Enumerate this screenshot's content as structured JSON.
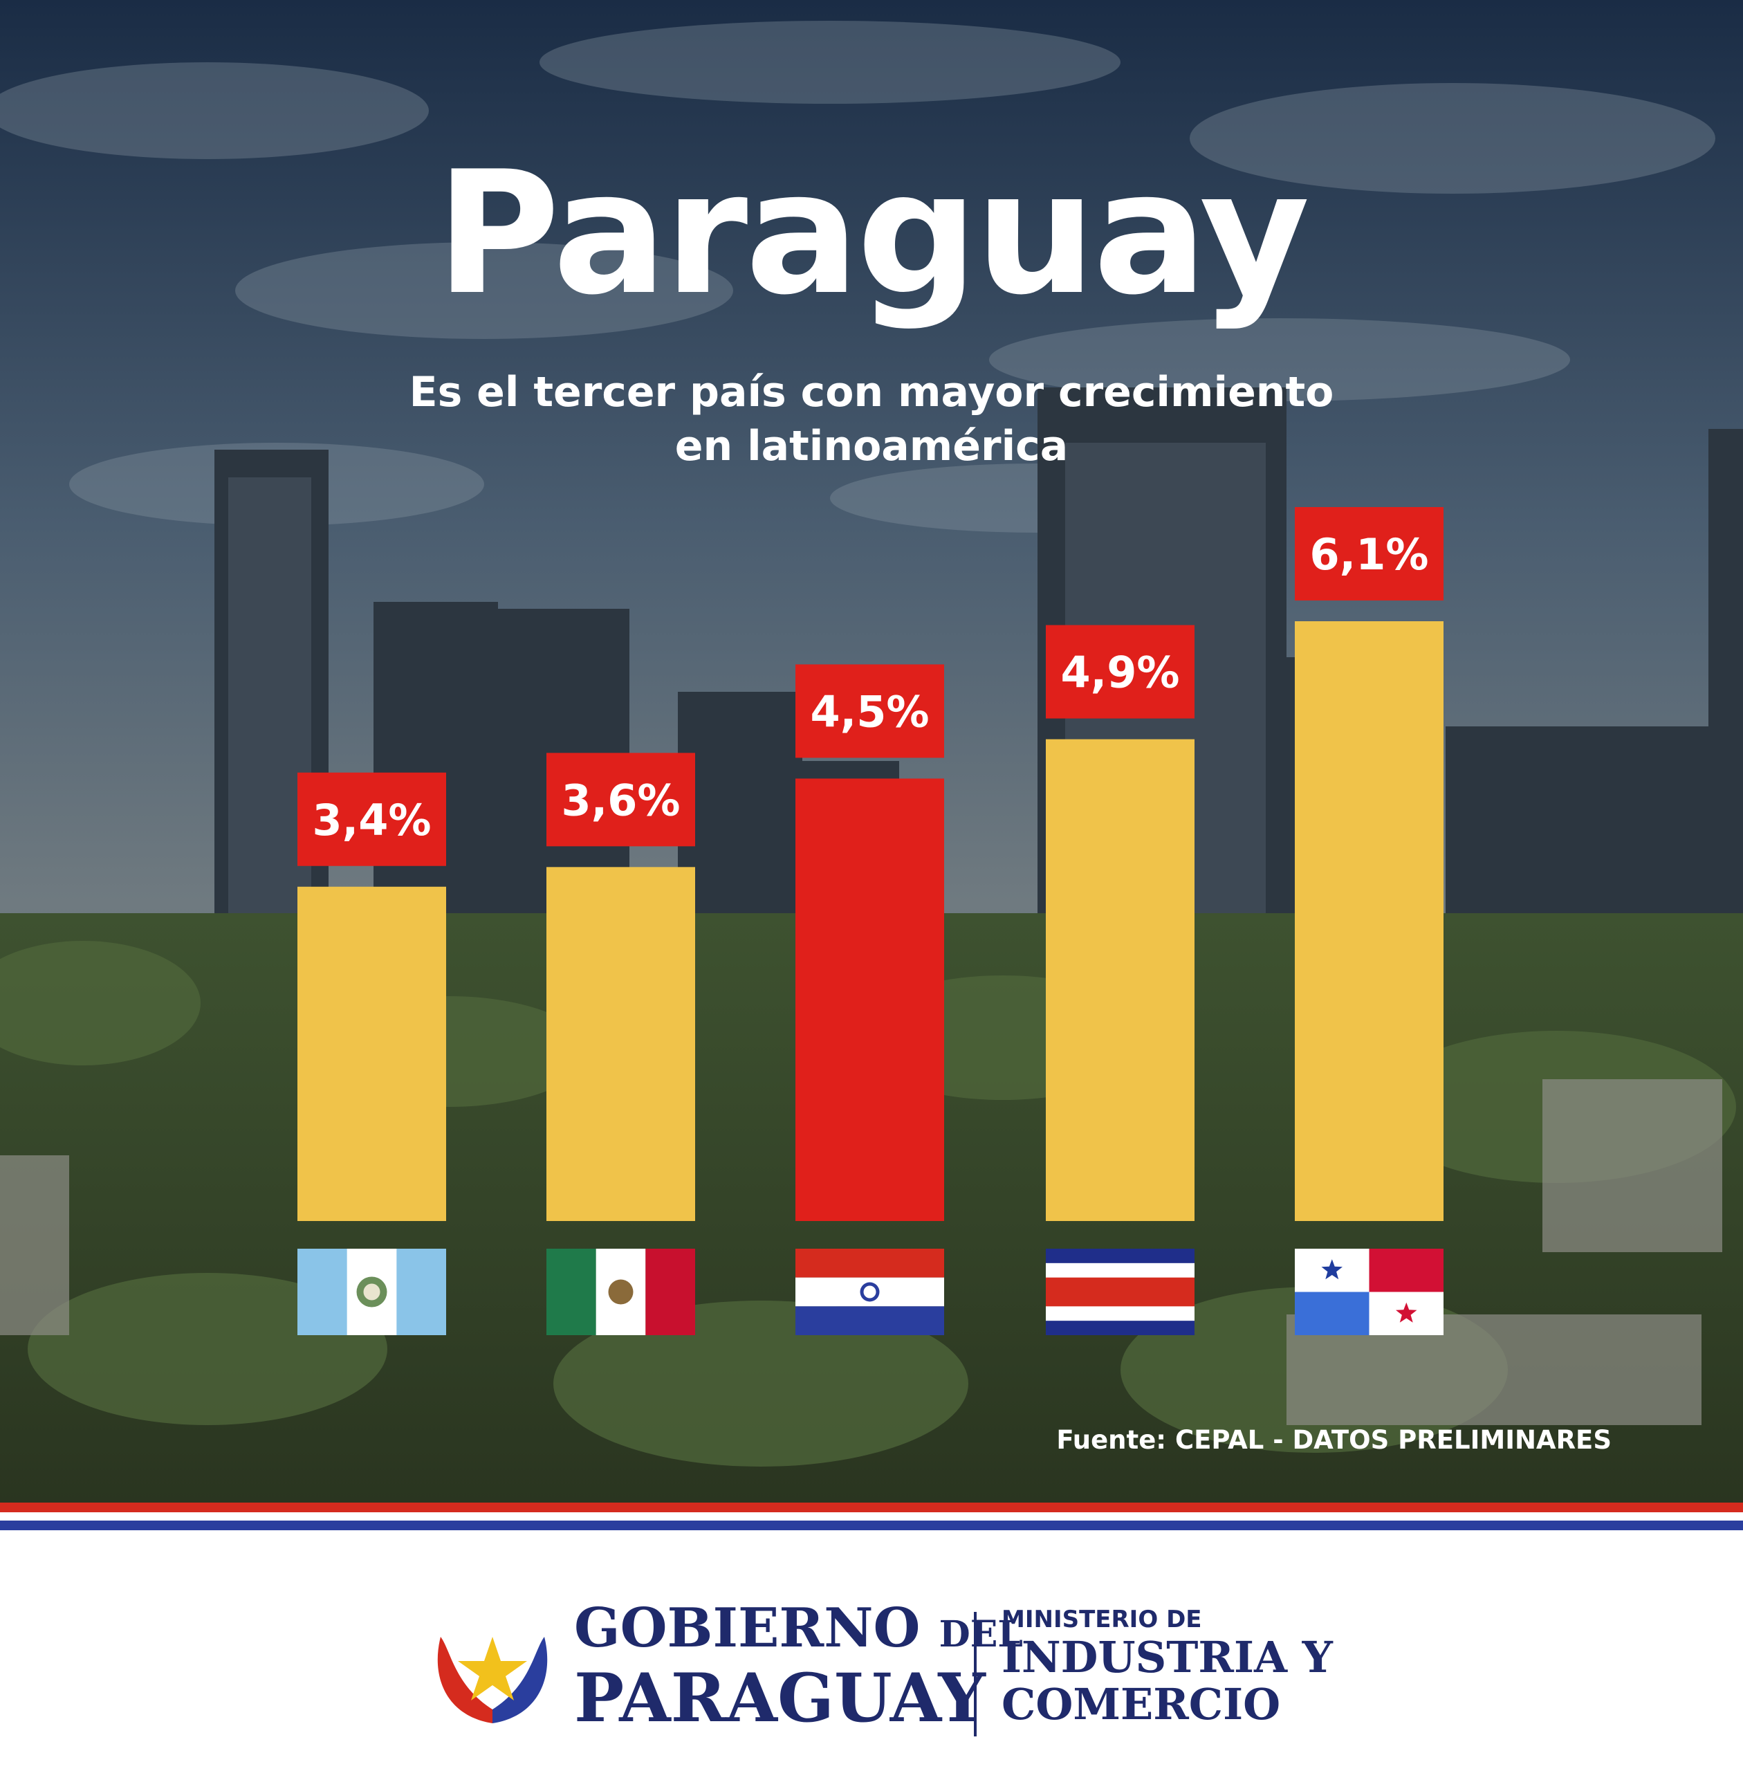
{
  "header": {
    "title": "Paraguay",
    "subtitle_line1": "Es el tercer país con mayor crecimiento",
    "subtitle_line2": "en latinoamérica"
  },
  "chart_data": {
    "type": "bar",
    "categories": [
      "Guatemala",
      "México",
      "Paraguay",
      "Costa Rica",
      "Panamá"
    ],
    "values": [
      3.4,
      3.6,
      4.5,
      4.9,
      6.1
    ],
    "value_labels": [
      "3,4%",
      "3,6%",
      "4,5%",
      "4,9%",
      "6,1%"
    ],
    "highlight_category": "Paraguay",
    "colors": {
      "bar": "#f0c34a",
      "highlight": "#e0201b",
      "label_bg": "#e0201b",
      "label_text": "#ffffff"
    },
    "category_icons": [
      "guatemala-flag-icon",
      "mexico-flag-icon",
      "paraguay-flag-icon",
      "costa-rica-flag-icon",
      "panama-flag-icon"
    ],
    "ylim": [
      0,
      6.1
    ],
    "grid": false,
    "legend": "none"
  },
  "source": "Fuente: CEPAL - DATOS PRELIMINARES",
  "footer": {
    "gob_line1_a": "GOBIERNO",
    "gob_line1_b": "DEL",
    "gob_line2": "PARAGUAY",
    "ministry_line1": "MINISTERIO DE",
    "ministry_line2": "INDUSTRIA Y",
    "ministry_line3": "COMERCIO"
  },
  "stripe_colors": {
    "red": "#d52b1e",
    "blue": "#2a3e9e"
  }
}
